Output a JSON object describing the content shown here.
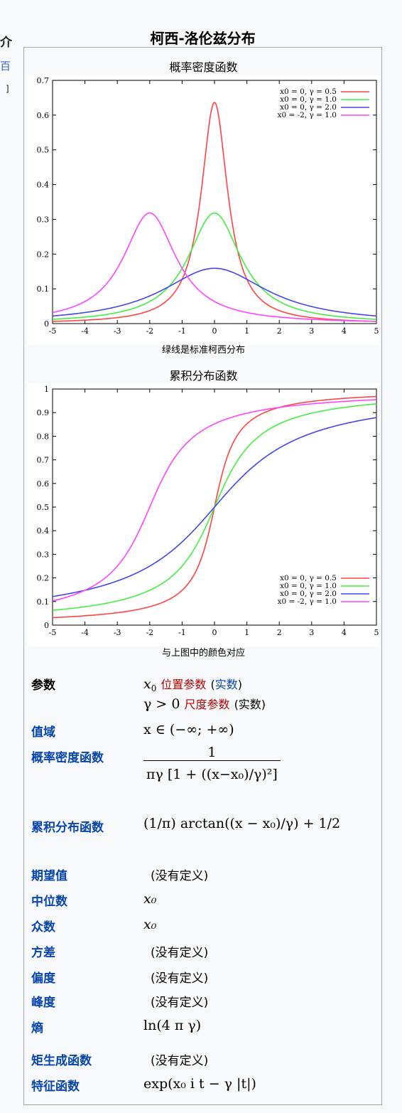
{
  "page": {
    "left_fragment_1": "介",
    "left_fragment_2": "百",
    "left_fragment_3": "]"
  },
  "infobox": {
    "title": "柯西-洛伦兹分布",
    "pdf_chart": {
      "title": "概率密度函数",
      "note": "绿线是标准柯西分布"
    },
    "cdf_chart": {
      "title": "累积分布函数",
      "note": "与上图中的颜色对应"
    },
    "rows": {
      "params_label": "参数",
      "params_x0_symbol": "x",
      "params_x0_sub": "0",
      "params_x0_link": "位置参数",
      "params_x0_type": "实数",
      "params_gamma_cond": "γ > 0",
      "params_gamma_link": "尺度参数",
      "params_gamma_type": "(实数)",
      "support_label": "值域",
      "support_value": "x ∈ (−∞; +∞)",
      "pdf_label": "概率密度函数",
      "pdf_num": "1",
      "pdf_den": "πγ [1 + ((x−x₀)/γ)²]",
      "cdf_label": "累积分布函数",
      "cdf_formula": "(1/π) arctan((x − x₀)/γ) + 1/2",
      "mean_label": "期望值",
      "mean_value": "(没有定义)",
      "median_label": "中位数",
      "median_value": "x₀",
      "mode_label": "众数",
      "mode_value": "x₀",
      "variance_label": "方差",
      "variance_value": "(没有定义)",
      "skewness_label": "偏度",
      "skewness_value": "(没有定义)",
      "kurtosis_label": "峰度",
      "kurtosis_value": "(没有定义)",
      "entropy_label": "熵",
      "entropy_value": "ln(4 π γ)",
      "mgf_label": "矩生成函数",
      "mgf_value": "(没有定义)",
      "cf_label": "特征函数",
      "cf_value": "exp(x₀ i t − γ |t|)"
    }
  },
  "chart_data": [
    {
      "type": "line",
      "title": "概率密度函数",
      "xlim": [
        -5,
        5
      ],
      "ylim": [
        0,
        0.7
      ],
      "x_ticks": [
        "-5",
        "-4",
        "-3",
        "-2",
        "-1",
        "0",
        "1",
        "2",
        "3",
        "4",
        "5"
      ],
      "y_ticks": [
        "0",
        "0.1",
        "0.2",
        "0.3",
        "0.4",
        "0.5",
        "0.6",
        "0.7"
      ],
      "legend_position": "top-right",
      "series": [
        {
          "name": "x0 = 0, γ = 0.5",
          "x0": 0,
          "gamma": 0.5,
          "color": "#ff4444"
        },
        {
          "name": "x0 = 0, γ = 1.0",
          "x0": 0,
          "gamma": 1.0,
          "color": "#44ee44"
        },
        {
          "name": "x0 = 0, γ = 2.0",
          "x0": 0,
          "gamma": 2.0,
          "color": "#4444ee"
        },
        {
          "name": "x0 = -2, γ = 1.0",
          "x0": -2,
          "gamma": 1.0,
          "color": "#ff44ff"
        }
      ]
    },
    {
      "type": "line",
      "title": "累积分布函数",
      "xlim": [
        -5,
        5
      ],
      "ylim": [
        0,
        1
      ],
      "x_ticks": [
        "-5",
        "-4",
        "-3",
        "-2",
        "-1",
        "0",
        "1",
        "2",
        "3",
        "4",
        "5"
      ],
      "y_ticks": [
        "0",
        "0.1",
        "0.2",
        "0.3",
        "0.4",
        "0.5",
        "0.6",
        "0.7",
        "0.8",
        "0.9",
        "1"
      ],
      "legend_position": "bottom-right",
      "series": [
        {
          "name": "x0 = 0, γ = 0.5",
          "x0": 0,
          "gamma": 0.5,
          "color": "#ff4444"
        },
        {
          "name": "x0 = 0, γ = 1.0",
          "x0": 0,
          "gamma": 1.0,
          "color": "#44ee44"
        },
        {
          "name": "x0 = 0, γ = 2.0",
          "x0": 0,
          "gamma": 2.0,
          "color": "#4444ee"
        },
        {
          "name": "x0 = -2, γ = 1.0",
          "x0": -2,
          "gamma": 1.0,
          "color": "#ff44ff"
        }
      ]
    }
  ]
}
